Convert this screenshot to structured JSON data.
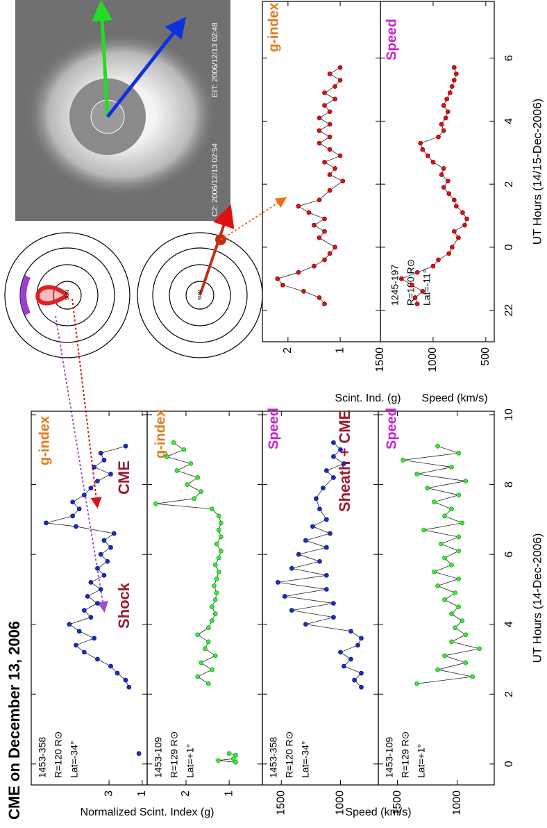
{
  "title": "CME on December 13, 2006",
  "image": {
    "labels": [
      "C2: 2006/12/13 02:54",
      "EIT: 2006/12/13 02:48"
    ]
  },
  "diagrams": {
    "sun_labels": [
      "SUN",
      "SUN"
    ]
  },
  "chart_data": [
    {
      "type": "line",
      "color": "#1a2bd0",
      "ylabel": "Normalized Scint. Index (g)",
      "info": [
        "1453-358",
        "R=120 R⊙",
        "Lat=-34°"
      ],
      "labels": [
        {
          "text": "g-index",
          "color": "#e07b1a"
        },
        {
          "text": "CME",
          "color": "#9b1b30"
        },
        {
          "text": "Shock",
          "color": "#9b1b30"
        }
      ],
      "x": [
        0.3,
        2.2,
        2.4,
        2.6,
        2.8,
        3.0,
        3.2,
        3.4,
        3.6,
        3.8,
        4.0,
        4.2,
        4.4,
        4.6,
        4.8,
        5.0,
        5.2,
        5.4,
        5.6,
        5.8,
        6.0,
        6.2,
        6.4,
        6.6,
        6.8,
        6.9,
        7.1,
        7.3,
        7.5,
        7.7,
        7.9,
        8.1,
        8.3,
        8.5,
        8.7,
        8.9,
        9.1
      ],
      "values": [
        1.2,
        1.8,
        2.0,
        2.5,
        2.9,
        3.7,
        4.5,
        5.0,
        3.9,
        4.8,
        5.4,
        4.1,
        4.5,
        3.7,
        4.3,
        3.5,
        4.1,
        3.3,
        3.7,
        3.1,
        3.5,
        2.9,
        3.3,
        2.7,
        5.0,
        6.8,
        5.2,
        4.8,
        5.2,
        4.5,
        4.1,
        3.7,
        2.9,
        3.9,
        3.3,
        3.5,
        2.0
      ],
      "xlim": [
        -0.6,
        10.1
      ],
      "xticks": [
        0,
        2,
        4,
        6,
        8,
        10
      ],
      "ylim": [
        0.7,
        7.7
      ],
      "yticks": [
        1,
        3
      ]
    },
    {
      "type": "line",
      "color": "#33ee33",
      "info": [
        "1453-109",
        "R=129 R⊙",
        "Lat=+1°"
      ],
      "labels": [
        {
          "text": "g-index",
          "color": "#e07b1a"
        }
      ],
      "x": [
        0.05,
        0.1,
        0.15,
        0.25,
        0.3,
        2.3,
        2.5,
        2.7,
        2.9,
        3.1,
        3.3,
        3.5,
        3.7,
        3.9,
        4.1,
        4.3,
        4.5,
        4.7,
        4.9,
        5.1,
        5.3,
        5.5,
        5.7,
        5.9,
        6.1,
        6.3,
        6.5,
        6.7,
        6.9,
        7.1,
        7.3,
        7.45,
        7.6,
        7.8,
        8.0,
        8.2,
        8.4,
        8.6,
        8.8,
        9.0,
        9.2
      ],
      "values": [
        0.85,
        1.25,
        0.9,
        0.85,
        1.0,
        1.48,
        1.73,
        1.4,
        1.65,
        1.32,
        1.56,
        1.48,
        1.73,
        1.48,
        1.4,
        1.32,
        1.4,
        1.32,
        1.29,
        1.35,
        1.29,
        1.24,
        1.32,
        1.24,
        1.19,
        1.29,
        1.19,
        1.24,
        1.19,
        1.24,
        1.4,
        2.7,
        1.81,
        1.65,
        1.97,
        1.73,
        2.21,
        1.89,
        2.45,
        2.05,
        2.29
      ],
      "xlim": [
        -0.6,
        10.1
      ],
      "xticks": [
        0,
        2,
        4,
        6,
        8,
        10
      ],
      "ylim": [
        0.23,
        2.9
      ],
      "yticks": [
        1,
        2
      ]
    },
    {
      "type": "line",
      "color": "#1a2bd0",
      "ylabel": "Speed (km/s)",
      "info": [
        "1453-358",
        "R=120 R⊙",
        "Lat=-34°"
      ],
      "labels": [
        {
          "text": "Speed",
          "color": "#cc22cc"
        },
        {
          "text": "Sheath + CME",
          "color": "#9b1b30"
        }
      ],
      "x": [
        2.2,
        2.4,
        2.6,
        2.8,
        3.0,
        3.2,
        3.4,
        3.6,
        3.8,
        4.0,
        4.2,
        4.4,
        4.6,
        4.8,
        5.0,
        5.2,
        5.4,
        5.6,
        5.8,
        6.0,
        6.2,
        6.4,
        6.6,
        6.8,
        7.0,
        7.3,
        7.6,
        7.9,
        8.2,
        8.4,
        8.6,
        8.8,
        9.0,
        9.2
      ],
      "values": [
        824,
        882,
        824,
        971,
        912,
        1000,
        853,
        824,
        912,
        1294,
        1059,
        1412,
        1059,
        1471,
        1118,
        1529,
        1118,
        1412,
        1176,
        1353,
        1118,
        1294,
        1088,
        1235,
        1118,
        1176,
        1206,
        1147,
        1059,
        1118,
        971,
        1059,
        1000,
        1059
      ],
      "xlim": [
        -0.6,
        10.1
      ],
      "xticks": [
        0,
        2,
        4,
        6,
        8,
        10
      ],
      "ylim": [
        680,
        1660
      ],
      "yticks": [
        1000,
        1500
      ]
    },
    {
      "type": "line",
      "color": "#33ee33",
      "xlabel": "UT Hours (14-Dec-2006)",
      "info": [
        "1453-109",
        "R=129 R⊙",
        "Lat=+1°"
      ],
      "labels": [
        {
          "text": "Speed",
          "color": "#cc22cc"
        }
      ],
      "x": [
        2.3,
        2.5,
        2.7,
        2.9,
        3.1,
        3.3,
        3.5,
        3.7,
        3.9,
        4.1,
        4.3,
        4.5,
        4.7,
        4.9,
        5.1,
        5.3,
        5.5,
        5.7,
        5.9,
        6.1,
        6.3,
        6.5,
        6.7,
        6.9,
        7.1,
        7.3,
        7.5,
        7.7,
        7.9,
        8.1,
        8.3,
        8.5,
        8.7,
        8.9,
        9.1
      ],
      "values": [
        1337,
        872,
        1163,
        930,
        1105,
        814,
        1047,
        930,
        1017,
        959,
        1047,
        988,
        1105,
        1017,
        1163,
        988,
        1192,
        1047,
        1105,
        988,
        1134,
        988,
        1279,
        959,
        1105,
        1047,
        1192,
        988,
        1250,
        930,
        1337,
        1047,
        1453,
        988,
        1163
      ],
      "xlim": [
        -0.6,
        10.1
      ],
      "xticks": [
        0,
        2,
        4,
        6,
        8,
        10
      ],
      "ylim": [
        690,
        1660
      ],
      "yticks": [
        1000,
        1500
      ]
    },
    {
      "type": "line",
      "color": "#dd1111",
      "ylabel": "Scint. Ind. (g)",
      "labels": [
        {
          "text": "g-index",
          "color": "#e07b1a"
        }
      ],
      "x": [
        -1.8,
        -1.6,
        -1.4,
        -1.2,
        -1.0,
        -0.8,
        -0.6,
        -0.4,
        -0.2,
        0,
        0.3,
        0.5,
        0.7,
        0.9,
        1.1,
        1.3,
        1.5,
        1.8,
        2.1,
        2.3,
        2.5,
        2.7,
        2.9,
        3.1,
        3.3,
        3.5,
        3.7,
        3.9,
        4.1,
        4.3,
        4.5,
        4.7,
        4.9,
        5.1,
        5.3,
        5.5,
        5.7
      ],
      "values": [
        1.3,
        1.4,
        1.7,
        2.1,
        2.2,
        1.8,
        1.5,
        1.3,
        1.2,
        1.1,
        1.4,
        1.3,
        1.5,
        1.3,
        1.6,
        1.8,
        1.4,
        1.2,
        0.95,
        1.2,
        1.1,
        1.3,
        1.0,
        1.2,
        1.4,
        1.2,
        1.4,
        1.2,
        1.4,
        1.2,
        1.3,
        1.1,
        1.3,
        1.1,
        1.0,
        1.2,
        1.0
      ],
      "xlim": [
        -3,
        7.8
      ],
      "xticks": [
        {
          "value": -2,
          "label": "22"
        },
        0,
        2,
        4,
        6
      ],
      "ylim": [
        0.23,
        2.49
      ],
      "yticks": [
        1,
        2
      ]
    },
    {
      "type": "line",
      "color": "#dd1111",
      "ylabel": "Speed (km/s)",
      "xlabel": "UT Hours (14/15-Dec-2006)",
      "info": [
        "1245-197",
        "R=190 R⊙",
        "Lat=-11°"
      ],
      "labels": [
        {
          "text": "Speed",
          "color": "#cc22cc"
        }
      ],
      "x": [
        -1.8,
        -1.6,
        -1.4,
        -1.2,
        -1.0,
        -0.8,
        -0.6,
        -0.4,
        -0.2,
        0,
        0.3,
        0.5,
        0.7,
        0.9,
        1.1,
        1.3,
        1.5,
        1.7,
        1.9,
        2.1,
        2.3,
        2.5,
        2.7,
        2.9,
        3.1,
        3.3,
        3.5,
        3.7,
        3.9,
        4.1,
        4.3,
        4.5,
        4.7,
        4.9,
        5.1,
        5.3,
        5.5,
        5.7
      ],
      "values": [
        1150,
        1170,
        1100,
        1200,
        1300,
        1150,
        1000,
        950,
        850,
        820,
        760,
        800,
        700,
        680,
        720,
        780,
        800,
        850,
        900,
        860,
        920,
        900,
        1000,
        1050,
        1100,
        1120,
        950,
        900,
        920,
        880,
        860,
        900,
        870,
        840,
        820,
        800,
        780,
        800
      ],
      "xlim": [
        -3,
        7.8
      ],
      "xticks": [
        {
          "value": -2,
          "label": "22"
        },
        0,
        2,
        4,
        6
      ],
      "ylim": [
        420,
        1500
      ],
      "yticks": [
        500,
        1000,
        1500
      ]
    }
  ]
}
